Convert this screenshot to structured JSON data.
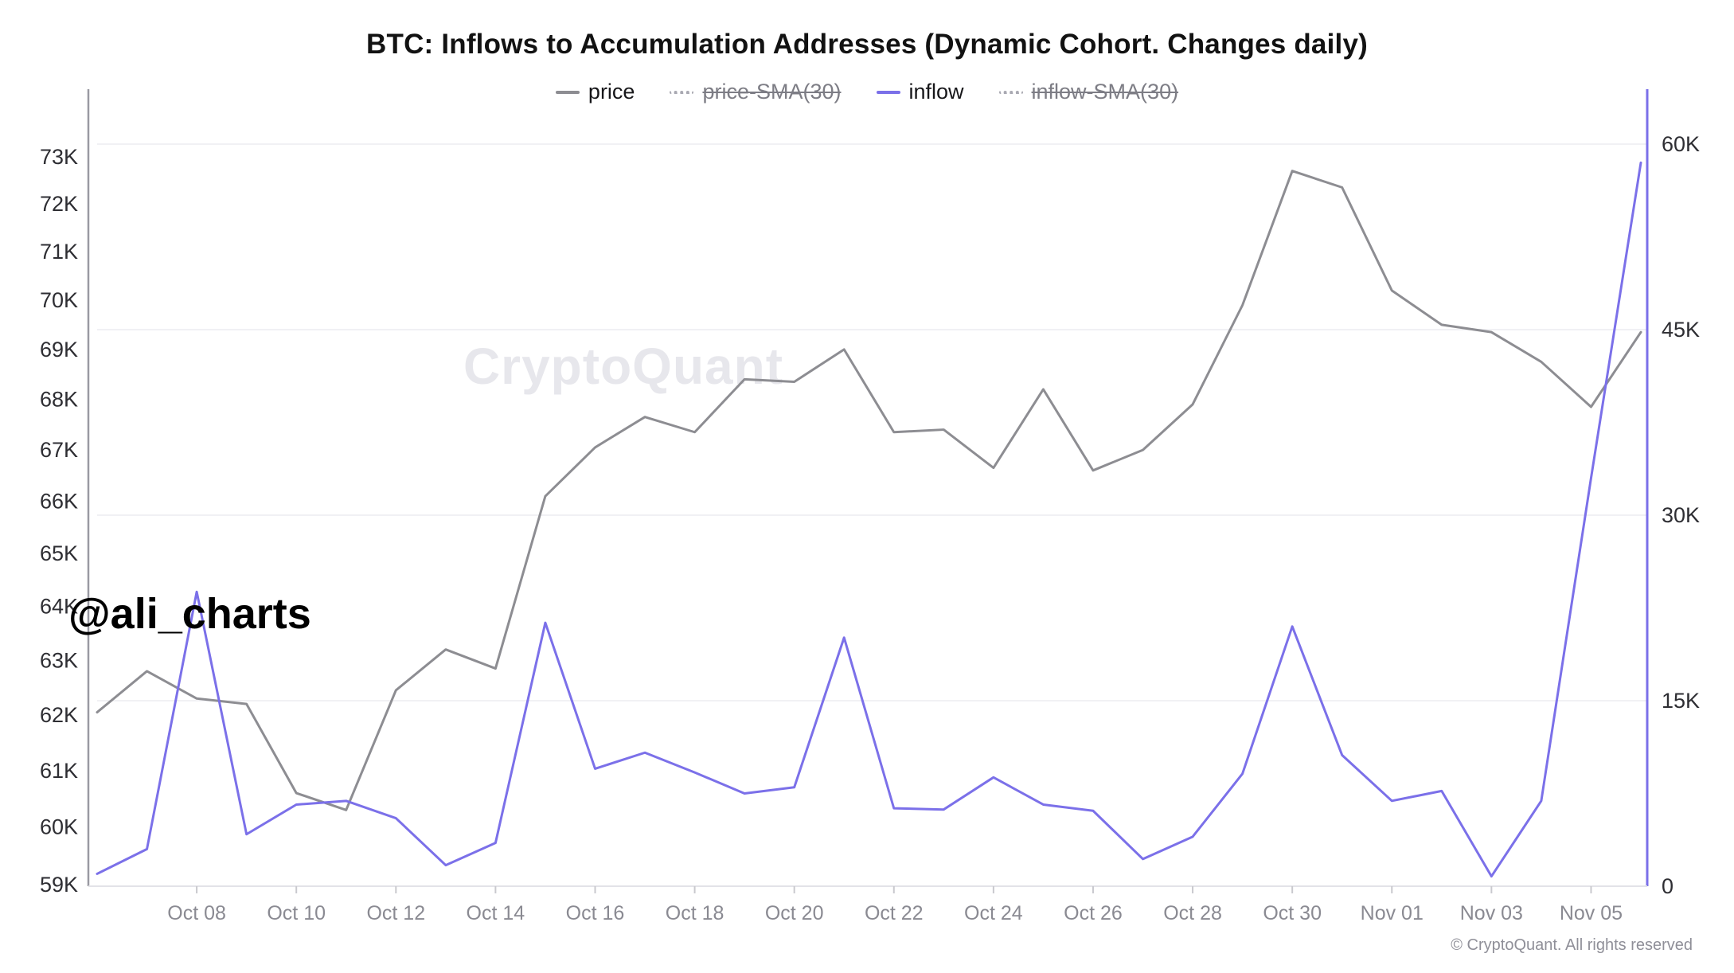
{
  "header": {
    "title": "BTC: Inflows to Accumulation Addresses (Dynamic Cohort. Changes daily)"
  },
  "legend": {
    "items": [
      {
        "label": "price",
        "style": "solid",
        "color": "#8d8d92",
        "struck": false
      },
      {
        "label": "price-SMA(30)",
        "style": "dotted",
        "color": "#a9a9b2",
        "struck": true
      },
      {
        "label": "inflow",
        "style": "solid",
        "color": "#7b70e9",
        "struck": false
      },
      {
        "label": "inflow-SMA(30)",
        "style": "dotted",
        "color": "#a9a9b2",
        "struck": true
      }
    ]
  },
  "watermark": "CryptoQuant",
  "annotation": "@ali_charts",
  "footer": "© CryptoQuant. All rights reserved",
  "colors": {
    "price_line": "#8d8d92",
    "inflow_line": "#7b70e9",
    "grid": "#f1f1f4",
    "left_axis": "#9a9aa2",
    "right_axis": "#7b70e9",
    "bottom_axis": "#e3e3e8",
    "tick": "#c9c9ce"
  },
  "chart_data": {
    "type": "line",
    "title": "BTC: Inflows to Accumulation Addresses (Dynamic Cohort. Changes daily)",
    "grid": "horizontal-only",
    "legend_position": "top-center",
    "dates": [
      "Oct 06",
      "Oct 07",
      "Oct 08",
      "Oct 09",
      "Oct 10",
      "Oct 11",
      "Oct 12",
      "Oct 13",
      "Oct 14",
      "Oct 15",
      "Oct 16",
      "Oct 17",
      "Oct 18",
      "Oct 19",
      "Oct 20",
      "Oct 21",
      "Oct 22",
      "Oct 23",
      "Oct 24",
      "Oct 25",
      "Oct 26",
      "Oct 27",
      "Oct 28",
      "Oct 29",
      "Oct 30",
      "Oct 31",
      "Nov 01",
      "Nov 02",
      "Nov 03",
      "Nov 04",
      "Nov 05",
      "Nov 06"
    ],
    "series": [
      {
        "name": "price",
        "axis": "left",
        "units": "USD thousands",
        "scale": "log",
        "values": [
          62.05,
          62.8,
          62.3,
          62.2,
          60.6,
          60.3,
          62.45,
          63.2,
          62.85,
          66.1,
          67.05,
          67.65,
          67.35,
          68.4,
          68.35,
          69.0,
          67.35,
          67.4,
          66.65,
          68.2,
          66.6,
          67.0,
          67.9,
          69.9,
          72.7,
          72.35,
          70.2,
          69.5,
          69.35,
          68.75,
          67.85,
          69.35
        ]
      },
      {
        "name": "inflow",
        "axis": "right",
        "units": "BTC",
        "values": [
          1000,
          3000,
          23800,
          4200,
          6600,
          6900,
          5500,
          1700,
          3500,
          21300,
          9500,
          10800,
          9200,
          7500,
          8000,
          20100,
          6300,
          6200,
          8800,
          6600,
          6100,
          2200,
          4000,
          9100,
          21000,
          10600,
          6900,
          7700,
          800,
          6900,
          33000,
          58500
        ]
      }
    ],
    "left_axis": {
      "ticks": [
        {
          "label": "73K",
          "value": 73
        },
        {
          "label": "72K",
          "value": 72
        },
        {
          "label": "71K",
          "value": 71
        },
        {
          "label": "70K",
          "value": 70
        },
        {
          "label": "69K",
          "value": 69
        },
        {
          "label": "68K",
          "value": 68
        },
        {
          "label": "67K",
          "value": 67
        },
        {
          "label": "66K",
          "value": 66
        },
        {
          "label": "65K",
          "value": 65
        },
        {
          "label": "64K",
          "value": 64
        },
        {
          "label": "63K",
          "value": 63
        },
        {
          "label": "62K",
          "value": 62
        },
        {
          "label": "61K",
          "value": 61
        },
        {
          "label": "60K",
          "value": 60
        },
        {
          "label": "59K",
          "value": 59
        }
      ],
      "range": [
        59,
        73
      ]
    },
    "right_axis": {
      "ticks": [
        {
          "label": "60K",
          "value": 60000
        },
        {
          "label": "45K",
          "value": 45000
        },
        {
          "label": "30K",
          "value": 30000
        },
        {
          "label": "15K",
          "value": 15000
        },
        {
          "label": "0",
          "value": 0
        }
      ],
      "range": [
        0,
        60000
      ],
      "gridlines_for": [
        60000,
        45000,
        30000,
        15000
      ]
    },
    "x_axis": {
      "ticks": [
        {
          "label": "Oct 08",
          "day": 2
        },
        {
          "label": "Oct 10",
          "day": 4
        },
        {
          "label": "Oct 12",
          "day": 6
        },
        {
          "label": "Oct 14",
          "day": 8
        },
        {
          "label": "Oct 16",
          "day": 10
        },
        {
          "label": "Oct 18",
          "day": 12
        },
        {
          "label": "Oct 20",
          "day": 14
        },
        {
          "label": "Oct 22",
          "day": 16
        },
        {
          "label": "Oct 24",
          "day": 18
        },
        {
          "label": "Oct 26",
          "day": 20
        },
        {
          "label": "Oct 28",
          "day": 22
        },
        {
          "label": "Oct 30",
          "day": 24
        },
        {
          "label": "Nov 01",
          "day": 26
        },
        {
          "label": "Nov 03",
          "day": 28
        },
        {
          "label": "Nov 05",
          "day": 30
        }
      ]
    }
  }
}
